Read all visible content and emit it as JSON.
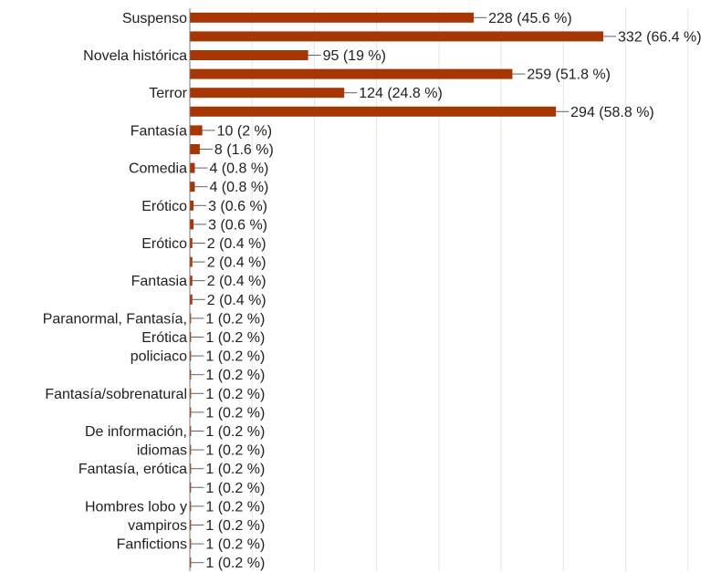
{
  "chart_data": {
    "type": "bar",
    "orientation": "horizontal",
    "grid": true,
    "xlim": [
      0,
      400
    ],
    "bar_color": "#a63603",
    "series": [
      {
        "values": [
          228,
          332,
          95,
          259,
          124,
          294,
          10,
          8,
          4,
          4,
          3,
          3,
          2,
          2,
          2,
          2,
          1,
          1,
          1,
          1,
          1,
          1,
          1,
          1,
          1,
          1,
          1,
          1,
          1,
          1
        ],
        "percents": [
          "45.6 %",
          "66.4 %",
          "19 %",
          "51.8 %",
          "24.8 %",
          "58.8 %",
          "2 %",
          "1.6 %",
          "0.8 %",
          "0.8 %",
          "0.6 %",
          "0.6 %",
          "0.4 %",
          "0.4 %",
          "0.4 %",
          "0.4 %",
          "0.2 %",
          "0.2 %",
          "0.2 %",
          "0.2 %",
          "0.2 %",
          "0.2 %",
          "0.2 %",
          "0.2 %",
          "0.2 %",
          "0.2 %",
          "0.2 %",
          "0.2 %",
          "0.2 %",
          "0.2 %"
        ],
        "data_labels": [
          "228 (45.6 %)",
          "332 (66.4 %)",
          "95 (19 %)",
          "259 (51.8 %)",
          "124 (24.8 %)",
          "294 (58.8 %)",
          "10 (2 %)",
          "8 (1.6 %)",
          "4 (0.8 %)",
          "4 (0.8 %)",
          "3 (0.6 %)",
          "3 (0.6 %)",
          "2 (0.4 %)",
          "2 (0.4 %)",
          "2 (0.4 %)",
          "2 (0.4 %)",
          "1 (0.2 %)",
          "1 (0.2 %)",
          "1 (0.2 %)",
          "1 (0.2 %)",
          "1 (0.2 %)",
          "1 (0.2 %)",
          "1 (0.2 %)",
          "1 (0.2 %)",
          "1 (0.2 %)",
          "1 (0.2 %)",
          "1 (0.2 %)",
          "1 (0.2 %)",
          "1 (0.2 %)",
          "1 (0.2 %)"
        ]
      }
    ],
    "category_labels": [
      {
        "text": [
          "Suspenso"
        ],
        "row": 0
      },
      {
        "text": [
          "Novela histórica"
        ],
        "row": 2
      },
      {
        "text": [
          "Terror"
        ],
        "row": 4
      },
      {
        "text": [
          "Fantasía"
        ],
        "row": 6
      },
      {
        "text": [
          "Comedia"
        ],
        "row": 8
      },
      {
        "text": [
          "Erótico"
        ],
        "row": 10
      },
      {
        "text": [
          "Erótico"
        ],
        "row": 12
      },
      {
        "text": [
          "Fantasia"
        ],
        "row": 14
      },
      {
        "text": [
          "Paranormal, Fantasía,",
          "Erótica"
        ],
        "row": 16
      },
      {
        "text": [
          "policiaco"
        ],
        "row": 18
      },
      {
        "text": [
          "Fantasía/sobrenatural"
        ],
        "row": 20
      },
      {
        "text": [
          "De información,",
          "idiomas"
        ],
        "row": 22
      },
      {
        "text": [
          "Fantasía, erótica"
        ],
        "row": 24
      },
      {
        "text": [
          "Hombres lobo y",
          "vampiros"
        ],
        "row": 26
      },
      {
        "text": [
          "Fanfictions"
        ],
        "row": 28
      }
    ]
  }
}
